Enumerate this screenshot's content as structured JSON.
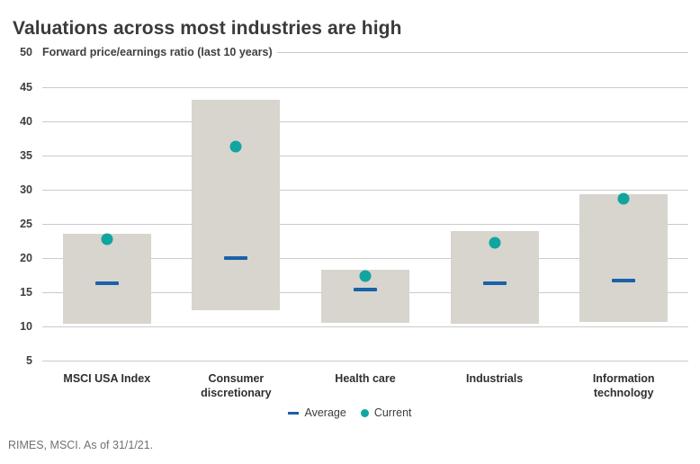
{
  "title": "Valuations across most industries are high",
  "source": "RIMES, MSCI. As of 31/1/21.",
  "legend": {
    "average_label": "Average",
    "current_label": "Current"
  },
  "colors": {
    "bar_fill": "#d8d4ce",
    "average_marker": "#1a61a8",
    "current_marker": "#10a5a0",
    "gridline": "#cbcbca",
    "title_text": "#3a3a39",
    "axis_text": "#404040",
    "category_text": "#2f2f2e",
    "source_text": "#71716f"
  },
  "chart_data": {
    "type": "bar",
    "subtype": "floating-range-bars-with-markers",
    "title": "Forward price/earnings ratio (last 10 years)",
    "categories": [
      "MSCI USA Index",
      "Consumer discretionary",
      "Health care",
      "Industrials",
      "Information technology"
    ],
    "series": [
      {
        "name": "10-year range low",
        "role": "range_low",
        "values": [
          10.4,
          12.4,
          10.5,
          10.4,
          10.6
        ]
      },
      {
        "name": "10-year range high",
        "role": "range_high",
        "values": [
          23.6,
          43.1,
          18.3,
          23.9,
          29.3
        ]
      },
      {
        "name": "Average",
        "role": "average",
        "marker": "dash",
        "values": [
          16.3,
          20.0,
          15.4,
          16.3,
          16.7
        ]
      },
      {
        "name": "Current",
        "role": "current",
        "marker": "dot",
        "values": [
          22.8,
          36.3,
          17.4,
          22.2,
          28.7
        ]
      }
    ],
    "xlabel": "",
    "ylabel": "Forward price/earnings ratio",
    "ylim": [
      5,
      50
    ],
    "y_ticks": [
      50,
      45,
      40,
      35,
      30,
      25,
      20,
      15,
      10,
      5
    ],
    "grid": true,
    "legend_position": "bottom"
  }
}
